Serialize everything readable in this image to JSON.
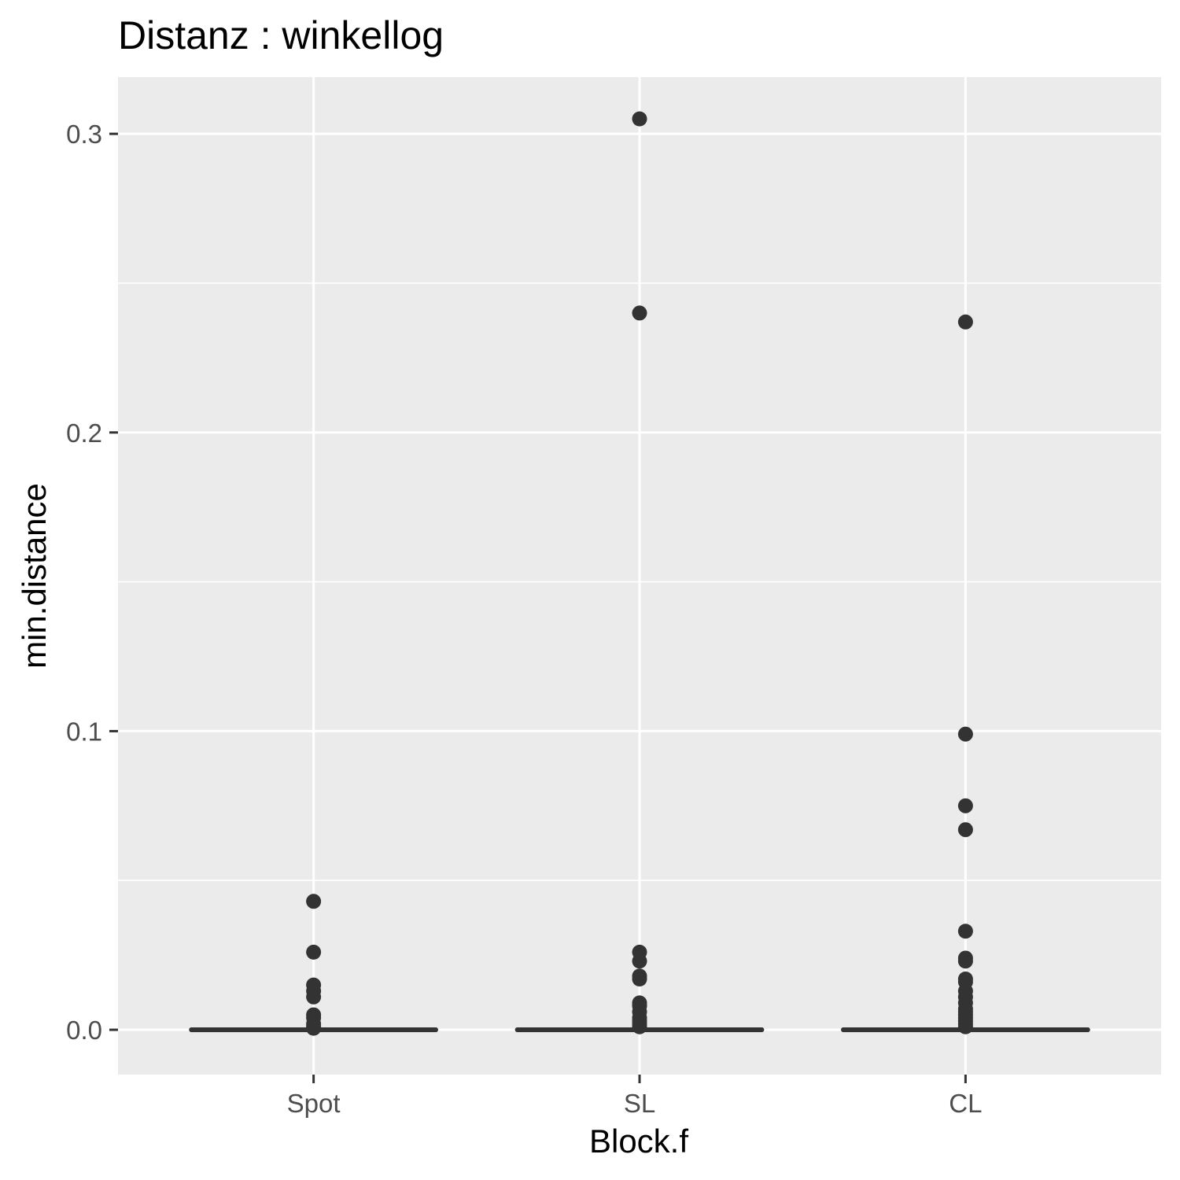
{
  "chart_data": {
    "type": "boxplot",
    "title": "Distanz : winkellog",
    "xlabel": "Block.f",
    "ylabel": "min.distance",
    "categories": [
      "Spot",
      "SL",
      "CL"
    ],
    "ylim": [
      -0.015,
      0.319
    ],
    "yticks": [
      0.0,
      0.1,
      0.2,
      0.3
    ],
    "ytick_labels": [
      "0.0",
      "0.1",
      "0.2",
      "0.3"
    ],
    "grid": true,
    "boxes": [
      {
        "category": "Spot",
        "q1": 0.0,
        "median": 0.0,
        "q3": 0.0,
        "outliers": [
          0.043,
          0.026,
          0.015,
          0.013,
          0.011,
          0.005,
          0.004,
          0.002,
          0.001,
          0.0005
        ]
      },
      {
        "category": "SL",
        "q1": 0.0,
        "median": 0.0,
        "q3": 0.0,
        "outliers": [
          0.305,
          0.24,
          0.026,
          0.023,
          0.018,
          0.017,
          0.009,
          0.008,
          0.006,
          0.004,
          0.003,
          0.002,
          0.001
        ]
      },
      {
        "category": "CL",
        "q1": 0.0,
        "median": 0.0,
        "q3": 0.0,
        "outliers": [
          0.237,
          0.099,
          0.075,
          0.067,
          0.033,
          0.024,
          0.023,
          0.017,
          0.016,
          0.013,
          0.011,
          0.009,
          0.007,
          0.006,
          0.005,
          0.004,
          0.003,
          0.002,
          0.001
        ]
      }
    ],
    "colors": {
      "panel": "#ebebeb",
      "grid": "#ffffff",
      "marks": "#333333",
      "tick": "#333333"
    }
  }
}
